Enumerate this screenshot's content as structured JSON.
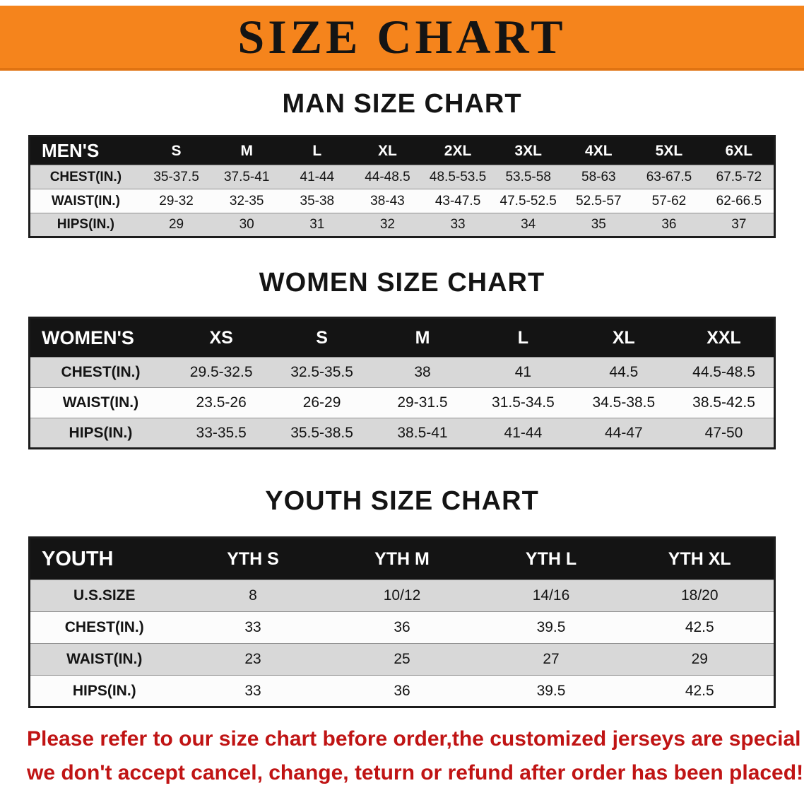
{
  "banner": {
    "title": "SIZE CHART",
    "bg_color": "#f5841c",
    "text_color": "#141414"
  },
  "sections": {
    "men": {
      "heading": "MAN SIZE CHART",
      "table": {
        "header": [
          "MEN'S",
          "S",
          "M",
          "L",
          "XL",
          "2XL",
          "3XL",
          "4XL",
          "5XL",
          "6XL"
        ],
        "rows": [
          [
            "CHEST(IN.)",
            "35-37.5",
            "37.5-41",
            "41-44",
            "44-48.5",
            "48.5-53.5",
            "53.5-58",
            "58-63",
            "63-67.5",
            "67.5-72"
          ],
          [
            "WAIST(IN.)",
            "29-32",
            "32-35",
            "35-38",
            "38-43",
            "43-47.5",
            "47.5-52.5",
            "52.5-57",
            "57-62",
            "62-66.5"
          ],
          [
            "HIPS(IN.)",
            "29",
            "30",
            "31",
            "32",
            "33",
            "34",
            "35",
            "36",
            "37"
          ]
        ]
      }
    },
    "women": {
      "heading": "WOMEN SIZE CHART",
      "table": {
        "header": [
          "WOMEN'S",
          "XS",
          "S",
          "M",
          "L",
          "XL",
          "XXL"
        ],
        "rows": [
          [
            "CHEST(IN.)",
            "29.5-32.5",
            "32.5-35.5",
            "38",
            "41",
            "44.5",
            "44.5-48.5"
          ],
          [
            "WAIST(IN.)",
            "23.5-26",
            "26-29",
            "29-31.5",
            "31.5-34.5",
            "34.5-38.5",
            "38.5-42.5"
          ],
          [
            "HIPS(IN.)",
            "33-35.5",
            "35.5-38.5",
            "38.5-41",
            "41-44",
            "44-47",
            "47-50"
          ]
        ]
      }
    },
    "youth": {
      "heading": "YOUTH SIZE CHART",
      "table": {
        "header": [
          "YOUTH",
          "YTH S",
          "YTH M",
          "YTH L",
          "YTH XL"
        ],
        "rows": [
          [
            "U.S.SIZE",
            "8",
            "10/12",
            "14/16",
            "18/20"
          ],
          [
            "CHEST(IN.)",
            "33",
            "36",
            "39.5",
            "42.5"
          ],
          [
            "WAIST(IN.)",
            "23",
            "25",
            "27",
            "29"
          ],
          [
            "HIPS(IN.)",
            "33",
            "36",
            "39.5",
            "42.5"
          ]
        ]
      }
    }
  },
  "notice": {
    "line1": "Please refer to our size chart before order,the customized jerseys are special products,",
    "line2": "we don't accept cancel, change, teturn or refund after order has been placed!",
    "text_color": "#c01414"
  }
}
